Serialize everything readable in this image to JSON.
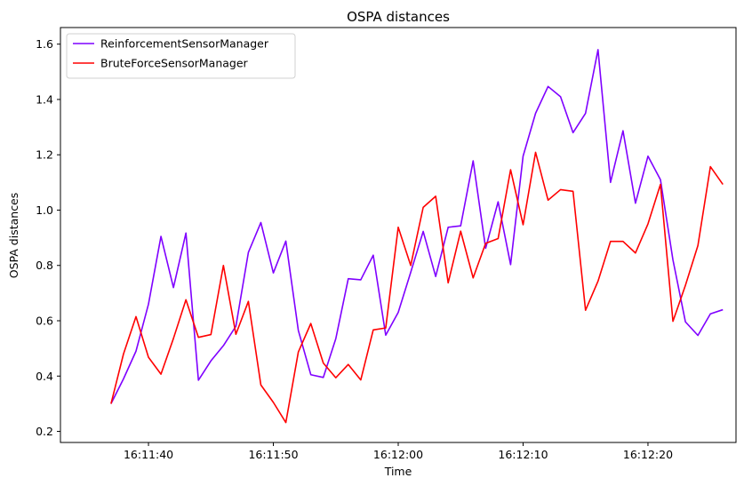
{
  "chart_data": {
    "type": "line",
    "title": "OSPA distances",
    "xlabel": "Time",
    "ylabel": "OSPA distances",
    "x_ticks": [
      "16:11:40",
      "16:11:50",
      "16:12:00",
      "16:12:10",
      "16:12:20"
    ],
    "x_tick_seconds": [
      40,
      50,
      60,
      70,
      80
    ],
    "y_ticks": [
      0.2,
      0.4,
      0.6,
      0.8,
      1.0,
      1.2,
      1.4,
      1.6
    ],
    "y_tick_labels": [
      "0.2",
      "0.4",
      "0.6",
      "0.8",
      "1.0",
      "1.2",
      "1.4",
      "1.6"
    ],
    "xlim_seconds": [
      32.95,
      87.05
    ],
    "ylim": [
      0.16,
      1.66
    ],
    "grid": false,
    "legend_position": "top-left",
    "x_seconds": [
      37,
      38,
      39,
      40,
      41,
      42,
      43,
      44,
      45,
      46,
      47,
      48,
      49,
      50,
      51,
      52,
      53,
      54,
      55,
      56,
      57,
      58,
      59,
      60,
      61,
      62,
      63,
      64,
      65,
      66,
      67,
      68,
      69,
      70,
      71,
      72,
      73,
      74,
      75,
      76,
      77,
      78,
      79,
      80,
      81,
      82,
      83,
      84,
      85,
      86
    ],
    "series": [
      {
        "name": "ReinforcementSensorManager",
        "color": "#7f00ff",
        "values": [
          0.3,
          0.39,
          0.49,
          0.66,
          0.905,
          0.72,
          0.917,
          0.385,
          0.455,
          0.51,
          0.58,
          0.847,
          0.955,
          0.773,
          0.888,
          0.565,
          0.405,
          0.395,
          0.535,
          0.752,
          0.748,
          0.837,
          0.548,
          0.63,
          0.775,
          0.923,
          0.76,
          0.938,
          0.943,
          1.178,
          0.862,
          1.03,
          0.803,
          1.195,
          1.35,
          1.447,
          1.41,
          1.28,
          1.35,
          1.58,
          1.1,
          1.287,
          1.025,
          1.195,
          1.11,
          0.82,
          0.596,
          0.547,
          0.625,
          0.64
        ]
      },
      {
        "name": "BruteForceSensorManager",
        "color": "#ff0000",
        "values": [
          0.3,
          0.48,
          0.615,
          0.468,
          0.407,
          0.536,
          0.676,
          0.54,
          0.55,
          0.8,
          0.551,
          0.67,
          0.368,
          0.305,
          0.232,
          0.487,
          0.59,
          0.447,
          0.394,
          0.442,
          0.386,
          0.567,
          0.574,
          0.938,
          0.8,
          1.01,
          1.05,
          0.737,
          0.924,
          0.755,
          0.88,
          0.897,
          1.146,
          0.947,
          1.209,
          1.036,
          1.074,
          1.068,
          0.638,
          0.743,
          0.887,
          0.887,
          0.845,
          0.95,
          1.093,
          0.598,
          0.728,
          0.872,
          1.157,
          1.093
        ]
      }
    ]
  }
}
